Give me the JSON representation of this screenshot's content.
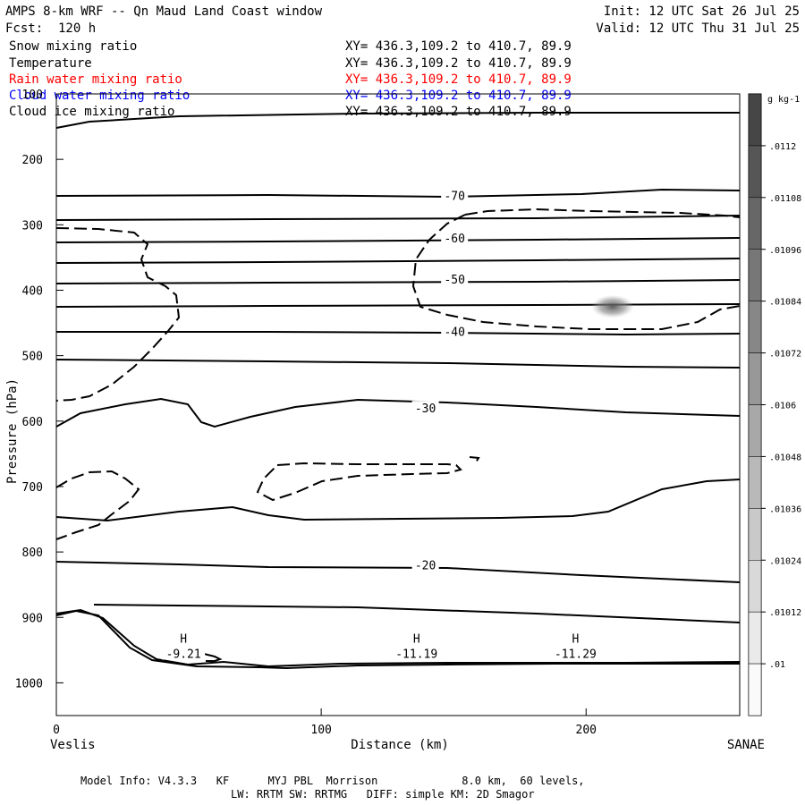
{
  "header": {
    "title": "AMPS 8-km WRF -- Qn Maud Land Coast window",
    "fcst": "Fcst:  120 h",
    "init": "Init: 12 UTC Sat 26 Jul 25",
    "valid": "Valid: 12 UTC Thu 31 Jul 25"
  },
  "fields": [
    {
      "label": "Snow mixing ratio",
      "xy": "XY= 436.3,109.2 to 410.7, 89.9",
      "color": "#000000"
    },
    {
      "label": "Temperature",
      "xy": "XY= 436.3,109.2 to 410.7, 89.9",
      "color": "#000000"
    },
    {
      "label": "Rain water mixing ratio",
      "xy": "XY= 436.3,109.2 to 410.7, 89.9",
      "color": "#ff0000"
    },
    {
      "label": "Cloud water mixing ratio",
      "xy": "XY= 436.3,109.2 to 410.7, 89.9",
      "color": "#0000ff"
    },
    {
      "label": "Cloud ice mixing ratio",
      "xy": "XY= 436.3,109.2 to 410.7, 89.9",
      "color": "#000000"
    }
  ],
  "footer": {
    "line1": "Model Info: V4.3.3   KF      MYJ PBL  Morrison             8.0 km,  60 levels,",
    "line2": "LW: RRTM SW: RRTMG   DIFF: simple KM: 2D Smagor"
  },
  "chart_data": {
    "type": "contour",
    "ylabel": "Pressure (hPa)",
    "xlabel": "Distance (km)",
    "x_start_label": "Veslis",
    "x_end_label": "SANAE",
    "xlim": [
      0,
      258
    ],
    "ylim": [
      1050,
      100
    ],
    "x_ticks": [
      0,
      100,
      200
    ],
    "y_ticks": [
      100,
      200,
      300,
      400,
      500,
      600,
      700,
      800,
      900,
      1000
    ],
    "colorbar": {
      "unit": "g kg-1",
      "labels": [
        ".0112",
        ".01108",
        ".01096",
        ".01084",
        ".01072",
        ".0106",
        ".01048",
        ".01036",
        ".01024",
        ".01012",
        ".01"
      ]
    },
    "temperature_labels": [
      {
        "text": "-70",
        "x": 150,
        "p": 255
      },
      {
        "text": "-60",
        "x": 150,
        "p": 320
      },
      {
        "text": "-50",
        "x": 150,
        "p": 383
      },
      {
        "text": "-40",
        "x": 150,
        "p": 463
      },
      {
        "text": "-30",
        "x": 139,
        "p": 580
      },
      {
        "text": "-20",
        "x": 139,
        "p": 820
      }
    ],
    "highs": [
      {
        "text": "-9.21",
        "x": 48,
        "p": 955
      },
      {
        "text": "-11.19",
        "x": 136,
        "p": 955
      },
      {
        "text": "-11.29",
        "x": 196,
        "p": 955
      }
    ],
    "snow_max": {
      "x": 210,
      "p": 425
    }
  }
}
